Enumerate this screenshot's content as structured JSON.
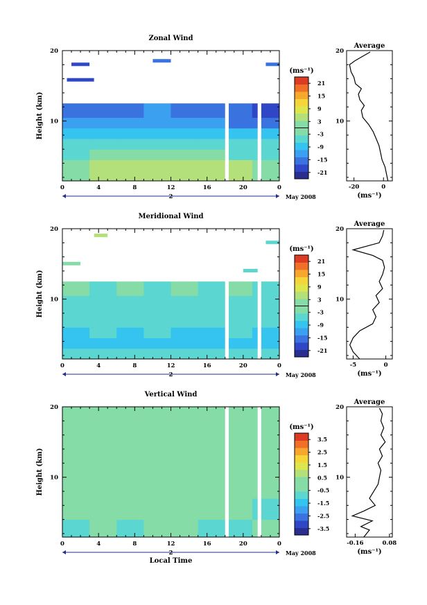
{
  "chart_data": [
    {
      "type": "heatmap",
      "title": "Zonal Wind",
      "ylabel": "Height (km)",
      "xlabel": "",
      "x_ticks": [
        "0",
        "4",
        "8",
        "12",
        "16",
        "20",
        "0"
      ],
      "y_ticks": [
        "10",
        "20"
      ],
      "xlim": [
        0,
        24
      ],
      "ylim": [
        1.5,
        20
      ],
      "day_label": "2",
      "date_label": "May 2008",
      "colorbar": {
        "unit": "(ms⁻¹)",
        "ticks": [
          "21",
          "15",
          "9",
          "3",
          "-3",
          "-9",
          "-15",
          "-21"
        ],
        "range": [
          -24,
          24
        ],
        "zero_line": true
      },
      "rows": [
        {
          "y0": 1.5,
          "y1": 3.0,
          "values": [
            1,
            2,
            3,
            3,
            3,
            2,
            2,
            1
          ]
        },
        {
          "y0": 3.0,
          "y1": 4.5,
          "values": [
            0,
            2,
            4,
            4,
            3,
            3,
            2,
            1
          ]
        },
        {
          "y0": 4.5,
          "y1": 6.0,
          "values": [
            -2,
            -1,
            0,
            0,
            -1,
            -1,
            -2,
            -2
          ]
        },
        {
          "y0": 6.0,
          "y1": 7.5,
          "values": [
            -4,
            -4,
            -3,
            -3,
            -4,
            -5,
            -5,
            -5
          ]
        },
        {
          "y0": 7.5,
          "y1": 9.0,
          "values": [
            -6,
            -7,
            -7,
            -6,
            -7,
            -8,
            -8,
            -9
          ]
        },
        {
          "y0": 9.0,
          "y1": 10.5,
          "values": [
            -10,
            -11,
            -10,
            -11,
            -12,
            -12,
            -13,
            -13
          ]
        },
        {
          "y0": 10.5,
          "y1": 12.5,
          "values": [
            -14,
            -15,
            -13,
            -12,
            -13,
            -15,
            -16,
            -17
          ]
        }
      ],
      "sparse": [
        {
          "x0": 1,
          "x1": 3,
          "y": 18,
          "v": -18
        },
        {
          "x0": 10,
          "x1": 12,
          "y": 18.5,
          "v": -16
        },
        {
          "x0": 0.5,
          "x1": 3.5,
          "y": 15.8,
          "v": -19
        },
        {
          "x0": 22.5,
          "x1": 24,
          "y": 18,
          "v": -14
        }
      ],
      "gaps_x": [
        [
          18.0,
          18.4
        ],
        [
          21.6,
          22.0
        ]
      ],
      "profile": {
        "title": "Average",
        "xlabel": "(ms⁻¹)",
        "x_ticks": [
          "-20",
          "0"
        ],
        "xlim": [
          -25,
          6
        ],
        "y_ticks": [
          "10",
          "20"
        ],
        "points": [
          [
            3,
            1.5
          ],
          [
            2,
            2.5
          ],
          [
            1,
            3.5
          ],
          [
            -1,
            4.5
          ],
          [
            -2,
            5.5
          ],
          [
            -3,
            6.5
          ],
          [
            -5,
            7.5
          ],
          [
            -7,
            8.5
          ],
          [
            -10,
            9.5
          ],
          [
            -14,
            10.5
          ],
          [
            -15,
            11.5
          ],
          [
            -13,
            12.2
          ],
          [
            -16,
            13.0
          ],
          [
            -17,
            13.8
          ],
          [
            -15,
            14.6
          ],
          [
            -19,
            15.3
          ],
          [
            -20,
            16.2
          ],
          [
            -22,
            17.0
          ],
          [
            -23,
            18.0
          ],
          [
            -19,
            18.6
          ],
          [
            -14,
            19.2
          ],
          [
            -9,
            19.8
          ]
        ]
      }
    },
    {
      "type": "heatmap",
      "title": "Meridional Wind",
      "ylabel": "Height (km)",
      "xlabel": "",
      "x_ticks": [
        "0",
        "4",
        "8",
        "12",
        "16",
        "20",
        "0"
      ],
      "y_ticks": [
        "10",
        "20"
      ],
      "xlim": [
        0,
        24
      ],
      "ylim": [
        1.5,
        20
      ],
      "day_label": "2",
      "date_label": "May 2008",
      "colorbar": {
        "unit": "(ms⁻¹)",
        "ticks": [
          "21",
          "15",
          "9",
          "3",
          "-3",
          "-9",
          "-15",
          "-21"
        ],
        "range": [
          -24,
          24
        ],
        "zero_line": true
      },
      "rows": [
        {
          "y0": 1.5,
          "y1": 3.0,
          "values": [
            -3,
            -3,
            -4,
            -3,
            -4,
            -3,
            -4,
            -3
          ]
        },
        {
          "y0": 3.0,
          "y1": 4.5,
          "values": [
            -7,
            -8,
            -8,
            -7,
            -7,
            -8,
            -8,
            -7
          ]
        },
        {
          "y0": 4.5,
          "y1": 6.0,
          "values": [
            -6,
            -5,
            -6,
            -5,
            -6,
            -6,
            -5,
            -6
          ]
        },
        {
          "y0": 6.0,
          "y1": 7.5,
          "values": [
            -4,
            -5,
            -4,
            -4,
            -5,
            -4,
            -5,
            -4
          ]
        },
        {
          "y0": 7.5,
          "y1": 9.0,
          "values": [
            -3,
            -4,
            -3,
            -3,
            -4,
            -3,
            -4,
            -3
          ]
        },
        {
          "y0": 9.0,
          "y1": 10.5,
          "values": [
            -2,
            -3,
            -2,
            -3,
            -2,
            -3,
            -2,
            -3
          ]
        },
        {
          "y0": 10.5,
          "y1": 12.5,
          "values": [
            -1,
            -2,
            -1,
            -2,
            -1,
            -2,
            -1,
            -2
          ]
        }
      ],
      "sparse": [
        {
          "x0": 3.5,
          "x1": 5,
          "y": 19,
          "v": 4
        },
        {
          "x0": 22.5,
          "x1": 24,
          "y": 18,
          "v": -2
        },
        {
          "x0": 0,
          "x1": 2,
          "y": 15,
          "v": -1
        },
        {
          "x0": 20,
          "x1": 22,
          "y": 14,
          "v": -2
        }
      ],
      "gaps_x": [
        [
          18.0,
          18.4
        ],
        [
          21.6,
          22.0
        ]
      ],
      "profile": {
        "title": "Average",
        "xlabel": "(ms⁻¹)",
        "x_ticks": [
          "-5",
          "0"
        ],
        "xlim": [
          -6,
          1
        ],
        "y_ticks": [
          "10",
          "20"
        ],
        "points": [
          [
            -4,
            1.5
          ],
          [
            -5,
            2.5
          ],
          [
            -5.5,
            3.5
          ],
          [
            -5,
            4.5
          ],
          [
            -4,
            5.5
          ],
          [
            -2,
            6.5
          ],
          [
            -1.5,
            7.5
          ],
          [
            -2,
            8.5
          ],
          [
            -1,
            9.5
          ],
          [
            -1.5,
            10.5
          ],
          [
            -0.5,
            11.5
          ],
          [
            -1,
            12.5
          ],
          [
            -0.5,
            13.5
          ],
          [
            -0.2,
            14.5
          ],
          [
            -0.5,
            15.5
          ],
          [
            -2,
            16.2
          ],
          [
            -5,
            17.0
          ],
          [
            -1,
            18.0
          ],
          [
            -0.5,
            19.0
          ],
          [
            -0.3,
            19.8
          ]
        ]
      }
    },
    {
      "type": "heatmap",
      "title": "Vertical Wind",
      "ylabel": "Height (km)",
      "xlabel": "Local Time",
      "x_ticks": [
        "0",
        "4",
        "8",
        "12",
        "16",
        "20",
        "0"
      ],
      "y_ticks": [
        "10",
        "20"
      ],
      "xlim": [
        0,
        24
      ],
      "ylim": [
        1.5,
        20
      ],
      "day_label": "2",
      "date_label": "May 2008",
      "colorbar": {
        "unit": "(ms⁻¹)",
        "ticks": [
          "3.5",
          "2.5",
          "1.5",
          "0.5",
          "-0.5",
          "-1.5",
          "-2.5",
          "-3.5"
        ],
        "range": [
          -4,
          4
        ],
        "zero_line": false
      },
      "rows": [
        {
          "y0": 1.5,
          "y1": 4.0,
          "values": [
            -0.4,
            -0.3,
            -0.4,
            -0.2,
            -0.3,
            -0.4,
            -0.5,
            -0.3
          ]
        },
        {
          "y0": 4.0,
          "y1": 7.0,
          "values": [
            -0.2,
            -0.1,
            -0.3,
            0.1,
            -0.2,
            -0.3,
            -0.2,
            -0.4
          ]
        },
        {
          "y0": 7.0,
          "y1": 10.0,
          "values": [
            -0.3,
            0.2,
            -0.2,
            -0.1,
            0.1,
            -0.2,
            -0.3,
            -0.2
          ]
        },
        {
          "y0": 10.0,
          "y1": 13.0,
          "values": [
            -0.2,
            -0.3,
            0.1,
            -0.1,
            -0.2,
            -0.3,
            -0.2,
            -0.1
          ]
        },
        {
          "y0": 13.0,
          "y1": 16.0,
          "values": [
            -0.1,
            0.2,
            -0.2,
            -0.1,
            0.0,
            -0.2,
            -0.1,
            -0.3
          ]
        },
        {
          "y0": 16.0,
          "y1": 20.0,
          "values": [
            0.1,
            -0.1,
            0.2,
            -0.2,
            0.1,
            -0.1,
            0.0,
            -0.2
          ]
        }
      ],
      "sparse": [],
      "gaps_x": [
        [
          18.0,
          18.4
        ],
        [
          21.6,
          22.0
        ]
      ],
      "profile": {
        "title": "Average",
        "xlabel": "(ms⁻¹)",
        "x_ticks": [
          "-0.16",
          "0.08"
        ],
        "xlim": [
          -0.22,
          0.1
        ],
        "y_ticks": [
          "10",
          "20"
        ],
        "points": [
          [
            -0.1,
            1.5
          ],
          [
            -0.06,
            2.5
          ],
          [
            -0.12,
            3.0
          ],
          [
            -0.04,
            3.8
          ],
          [
            -0.18,
            4.5
          ],
          [
            -0.1,
            5.2
          ],
          [
            -0.02,
            6.0
          ],
          [
            -0.06,
            7.0
          ],
          [
            -0.03,
            8.0
          ],
          [
            0.0,
            9.0
          ],
          [
            0.01,
            10.0
          ],
          [
            0.02,
            11.0
          ],
          [
            0.0,
            12.0
          ],
          [
            0.03,
            13.0
          ],
          [
            0.01,
            14.0
          ],
          [
            0.05,
            15.0
          ],
          [
            0.02,
            16.0
          ],
          [
            0.04,
            17.0
          ],
          [
            0.02,
            18.0
          ],
          [
            0.03,
            19.0
          ],
          [
            0.01,
            19.8
          ]
        ]
      }
    }
  ]
}
